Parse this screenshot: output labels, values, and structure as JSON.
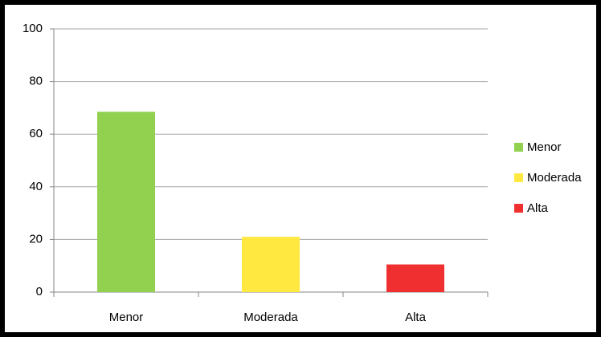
{
  "chart_data": {
    "type": "bar",
    "categories": [
      "Menor",
      "Moderada",
      "Alta"
    ],
    "values": [
      68.5,
      21,
      10.5
    ],
    "colors": [
      "#92d050",
      "#ffe840",
      "#f03030"
    ],
    "ylim": [
      0,
      100
    ],
    "yticks": [
      0,
      20,
      40,
      60,
      80,
      100
    ],
    "grid": true,
    "legend": "right"
  }
}
